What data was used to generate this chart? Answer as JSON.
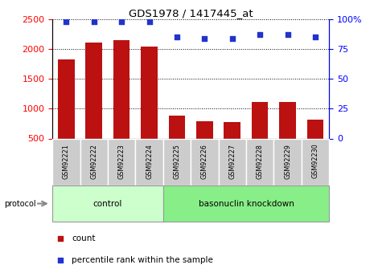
{
  "title": "GDS1978 / 1417445_at",
  "samples": [
    "GSM92221",
    "GSM92222",
    "GSM92223",
    "GSM92224",
    "GSM92225",
    "GSM92226",
    "GSM92227",
    "GSM92228",
    "GSM92229",
    "GSM92230"
  ],
  "counts": [
    1830,
    2110,
    2150,
    2040,
    880,
    795,
    775,
    1110,
    1110,
    820
  ],
  "percentile_ranks": [
    98,
    98,
    98,
    98,
    85,
    84,
    84,
    87,
    87,
    85
  ],
  "group_labels": [
    "control",
    "basonuclin knockdown"
  ],
  "bar_color": "#bb1111",
  "dot_color": "#2233cc",
  "left_ylim": [
    500,
    2500
  ],
  "left_yticks": [
    500,
    1000,
    1500,
    2000,
    2500
  ],
  "right_ylim": [
    0,
    100
  ],
  "right_yticks": [
    0,
    25,
    50,
    75,
    100
  ],
  "right_yticklabels": [
    "0",
    "25",
    "50",
    "75",
    "100%"
  ],
  "tick_label_bg": "#cccccc",
  "ctrl_color": "#ccffcc",
  "kd_color": "#88ee88",
  "protocol_label": "protocol",
  "legend_count_label": "count",
  "legend_pct_label": "percentile rank within the sample"
}
